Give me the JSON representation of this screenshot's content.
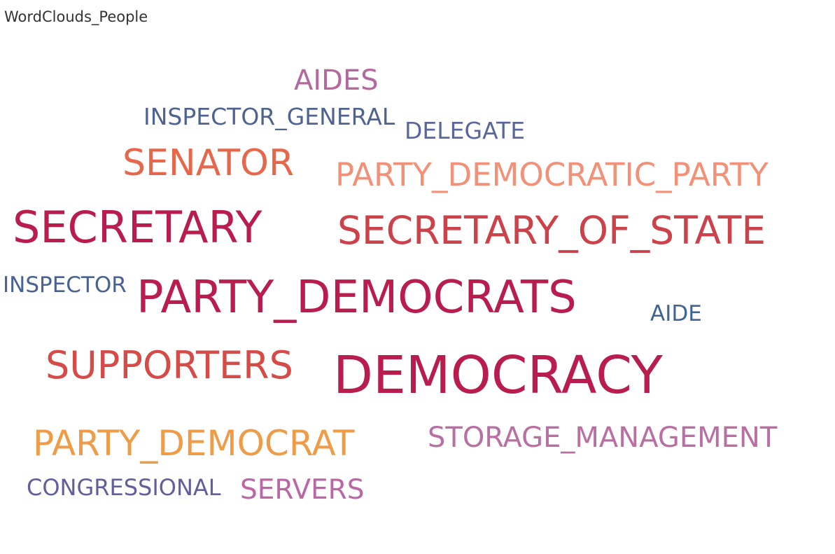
{
  "title": "WordClouds_People",
  "words": [
    {
      "id": "aides",
      "text": "AIDES",
      "color": "#b5689e"
    },
    {
      "id": "inspector_general",
      "text": "INSPECTOR_GENERAL",
      "color": "#4f6391"
    },
    {
      "id": "delegate",
      "text": "DELEGATE",
      "color": "#5a679b"
    },
    {
      "id": "senator",
      "text": "SENATOR",
      "color": "#e5674c"
    },
    {
      "id": "party_democratic_party",
      "text": "PARTY_DEMOCRATIC_PARTY",
      "color": "#f29177"
    },
    {
      "id": "secretary",
      "text": "SECRETARY",
      "color": "#b81d4e"
    },
    {
      "id": "secretary_of_state",
      "text": "SECRETARY_OF_STATE",
      "color": "#cc424a"
    },
    {
      "id": "inspector",
      "text": "INSPECTOR",
      "color": "#4a6291"
    },
    {
      "id": "party_democrats",
      "text": "PARTY_DEMOCRATS",
      "color": "#b81d4e"
    },
    {
      "id": "aide",
      "text": "AIDE",
      "color": "#3f6590"
    },
    {
      "id": "supporters",
      "text": "SUPPORTERS",
      "color": "#d44b48"
    },
    {
      "id": "democracy",
      "text": "DEMOCRACY",
      "color": "#b81d4e"
    },
    {
      "id": "party_democrat",
      "text": "PARTY_DEMOCRAT",
      "color": "#ee9c47"
    },
    {
      "id": "storage_management",
      "text": "STORAGE_MANAGEMENT",
      "color": "#ba6fa3"
    },
    {
      "id": "congressional",
      "text": "CONGRESSIONAL",
      "color": "#62609a"
    },
    {
      "id": "servers",
      "text": "SERVERS",
      "color": "#bb67a5"
    }
  ]
}
